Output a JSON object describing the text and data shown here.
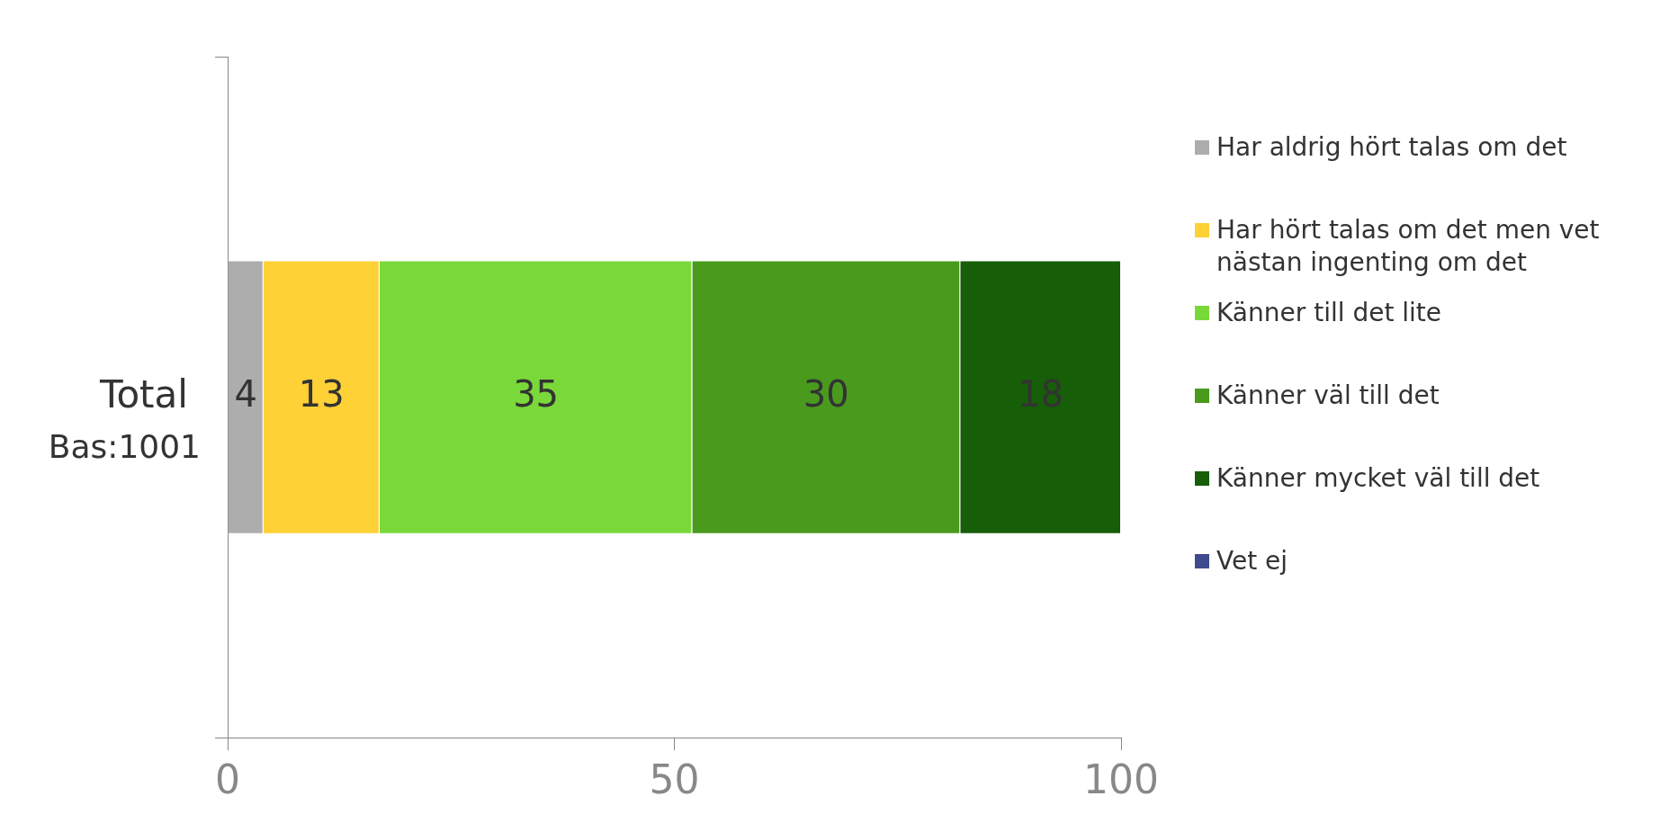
{
  "chart_data": {
    "type": "bar",
    "orientation": "horizontal",
    "stacked": true,
    "categories": [
      "Total"
    ],
    "series": [
      {
        "name": "Har aldrig hört talas om det",
        "color": "#adadad",
        "values": [
          4
        ]
      },
      {
        "name": "Har hört talas om det men vet nästan ingenting om det",
        "color": "#fed136",
        "values": [
          13
        ]
      },
      {
        "name": "Känner till det lite",
        "color": "#7ad93a",
        "values": [
          35
        ]
      },
      {
        "name": "Känner väl till det",
        "color": "#4a9a1e",
        "values": [
          30
        ]
      },
      {
        "name": "Känner mycket väl till det",
        "color": "#165e08",
        "values": [
          18
        ]
      },
      {
        "name": "Vet ej",
        "color": "#3f4a8e",
        "values": [
          null
        ]
      }
    ],
    "xlim": [
      0,
      100
    ],
    "xticks": [
      0,
      50,
      100
    ],
    "grid": false,
    "legend": "right",
    "data_labels": true,
    "annotations": [
      "Bas:1001"
    ]
  }
}
